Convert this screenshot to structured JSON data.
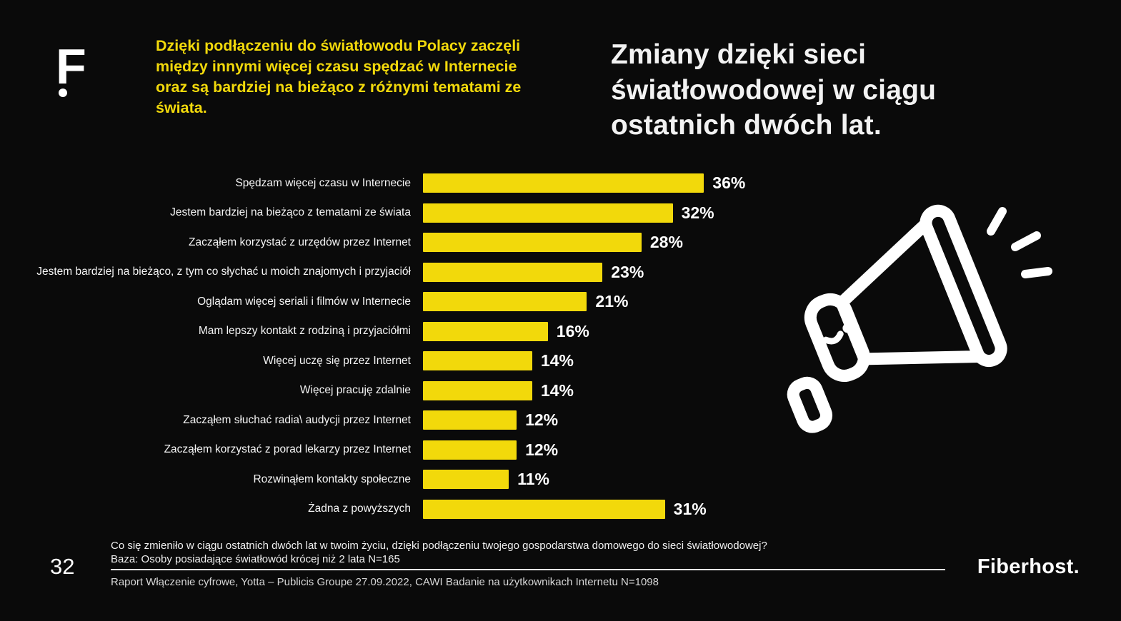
{
  "slide": {
    "page_number": "32",
    "logo_letter": "F",
    "brand_name": "Fiberhost.",
    "intro_text": "Dzięki podłączeniu do światłowodu Polacy zaczęli między innymi więcej czasu spędzać w Internecie oraz są bardziej na bieżąco z różnymi tematami ze świata.",
    "title": "Zmiany dzięki sieci światłowodowej w ciągu ostatnich dwóch lat.",
    "footnote_line1": "Co się zmieniło w ciągu ostatnich dwóch lat w twoim życiu, dzięki podłączeniu twojego gospodarstwa domowego do sieci światłowodowej?",
    "footnote_line2": "Baza: Osoby posiadające światłowód krócej niż 2 lata N=165",
    "source": "Raport Włączenie cyfrowe, Yotta – Publicis Groupe 27.09.2022, CAWI Badanie na użytkownikach Internetu N=1098"
  },
  "colors": {
    "background": "#0a0a0a",
    "accent_yellow": "#f2d90b",
    "text_white": "#ffffff"
  },
  "chart_data": {
    "type": "bar",
    "orientation": "horizontal",
    "title": "Zmiany dzięki sieci światłowodowej w ciągu ostatnich dwóch lat.",
    "categories": [
      "Spędzam więcej czasu w Internecie",
      "Jestem bardziej na bieżąco z tematami ze świata",
      "Zacząłem korzystać z urzędów przez Internet",
      "Jestem bardziej na bieżąco, z tym co słychać u moich znajomych i przyjaciół",
      "Oglądam więcej seriali i filmów w Internecie",
      "Mam lepszy kontakt z rodziną i przyjaciółmi",
      "Więcej uczę się przez Internet",
      "Więcej pracuję zdalnie",
      "Zacząłem słuchać radia\\ audycji przez Internet",
      "Zacząłem korzystać z porad lekarzy przez Internet",
      "Rozwinąłem kontakty społeczne",
      "Żadna z powyższych"
    ],
    "values": [
      36,
      32,
      28,
      23,
      21,
      16,
      14,
      14,
      12,
      12,
      11,
      31
    ],
    "value_suffix": "%",
    "xlim": [
      0,
      40
    ],
    "bar_color": "#f2d90b",
    "grid": false,
    "legend": false
  }
}
